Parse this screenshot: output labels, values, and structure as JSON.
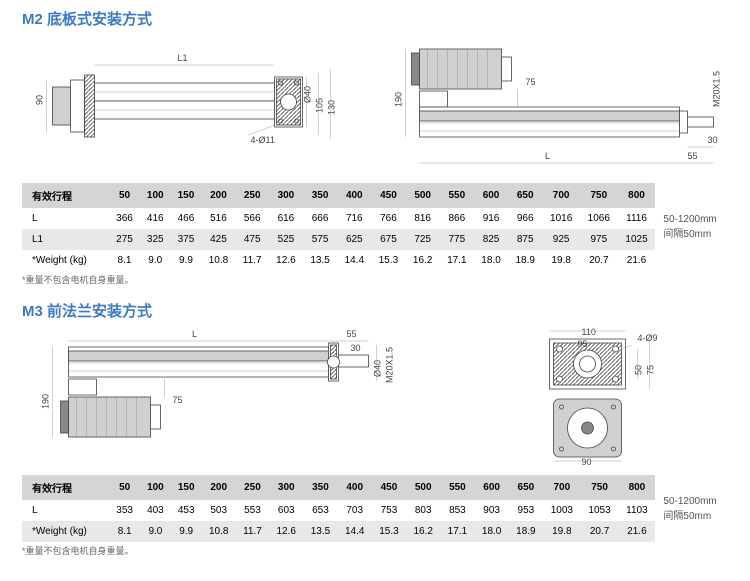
{
  "m2": {
    "title": "M2 底板式安装方式",
    "note": "*重量不包含电机自身重量。",
    "side_note1": "50-1200mm",
    "side_note2": "间隔50mm",
    "headers": [
      "有效行程",
      "50",
      "100",
      "150",
      "200",
      "250",
      "300",
      "350",
      "400",
      "450",
      "500",
      "550",
      "600",
      "650",
      "700",
      "750",
      "800"
    ],
    "rows": [
      [
        "L",
        "366",
        "416",
        "466",
        "516",
        "566",
        "616",
        "666",
        "716",
        "766",
        "816",
        "866",
        "916",
        "966",
        "1016",
        "1066",
        "1116"
      ],
      [
        "L1",
        "275",
        "325",
        "375",
        "425",
        "475",
        "525",
        "575",
        "625",
        "675",
        "725",
        "775",
        "825",
        "875",
        "925",
        "975",
        "1025"
      ],
      [
        "*Weight (kg)",
        "8.1",
        "9.0",
        "9.9",
        "10.8",
        "11.7",
        "12.6",
        "13.5",
        "14.4",
        "15.3",
        "16.2",
        "17.1",
        "18.0",
        "18.9",
        "19.8",
        "20.7",
        "21.6"
      ]
    ],
    "dims": {
      "d90": "90",
      "dL1": "L1",
      "d4011": "4-Ø11",
      "d40": "Ø40",
      "d105": "105",
      "d130": "130",
      "d190": "190",
      "d75": "75",
      "dM20": "M20X1.5",
      "d30": "30",
      "d55": "55",
      "dL": "L"
    }
  },
  "m3": {
    "title": "M3 前法兰安装方式",
    "note": "*重量不包含电机自身重量。",
    "side_note1": "50-1200mm",
    "side_note2": "间隔50mm",
    "headers": [
      "有效行程",
      "50",
      "100",
      "150",
      "200",
      "250",
      "300",
      "350",
      "400",
      "450",
      "500",
      "550",
      "600",
      "650",
      "700",
      "750",
      "800"
    ],
    "rows": [
      [
        "L",
        "353",
        "403",
        "453",
        "503",
        "553",
        "603",
        "653",
        "703",
        "753",
        "803",
        "853",
        "903",
        "953",
        "1003",
        "1053",
        "1103"
      ],
      [
        "*Weight (kg)",
        "8.1",
        "9.0",
        "9.9",
        "10.8",
        "11.7",
        "12.6",
        "13.5",
        "14.4",
        "15.3",
        "16.2",
        "17.1",
        "18.0",
        "18.9",
        "19.8",
        "20.7",
        "21.6"
      ]
    ],
    "dims": {
      "dL": "L",
      "d55": "55",
      "d30": "30",
      "d40": "Ø40",
      "dM20": "M20X1.5",
      "d190": "190",
      "d75": "75",
      "d110": "110",
      "d95": "95",
      "d409": "4-Ø9",
      "d50": "50",
      "d75b": "75",
      "d90": "90"
    }
  }
}
